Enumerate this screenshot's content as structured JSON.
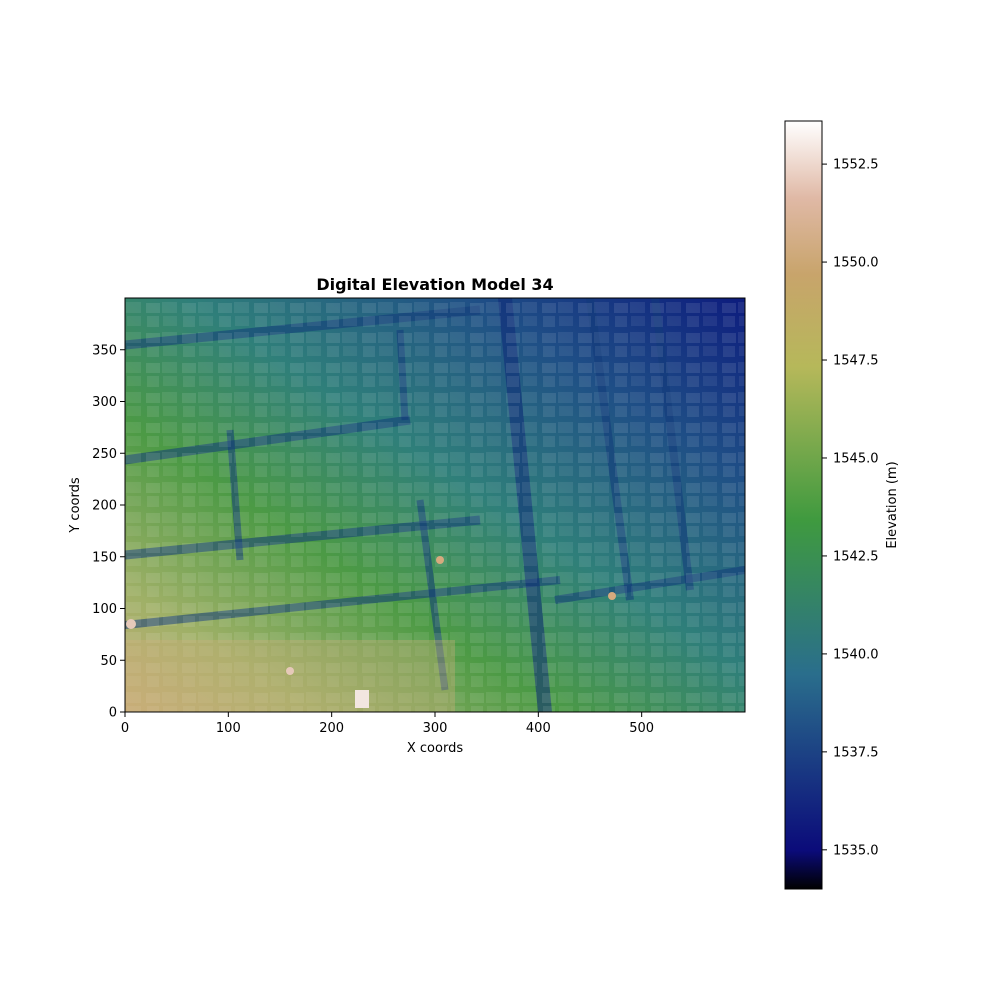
{
  "chart_data": {
    "type": "heatmap",
    "title": "Digital Elevation Model 34",
    "xlabel": "X coords",
    "ylabel": "Y coords",
    "xlim": [
      0,
      600
    ],
    "ylim": [
      0,
      400
    ],
    "x_ticks": [
      0,
      100,
      200,
      300,
      400,
      500
    ],
    "y_ticks": [
      0,
      50,
      100,
      150,
      200,
      250,
      300,
      350
    ],
    "colorbar": {
      "label": "Elevation (m)",
      "range": [
        1534.0,
        1553.6
      ],
      "ticks": [
        "1535.0",
        "1537.5",
        "1540.0",
        "1542.5",
        "1545.0",
        "1547.5",
        "1550.0",
        "1552.5"
      ],
      "colormap": "gist_earth",
      "colors": [
        "#000000",
        "#0b0b7a",
        "#2a6e8c",
        "#3f9a3f",
        "#b6b85a",
        "#c8a46b",
        "#e0b9a6",
        "#ffffff"
      ]
    },
    "grid": false,
    "description_of_field": "Urban elevation raster; lowest (~1535 m, dark blue) toward top-right, highest (~1550 m, tan) toward bottom-left; building blocks raised above streets"
  }
}
